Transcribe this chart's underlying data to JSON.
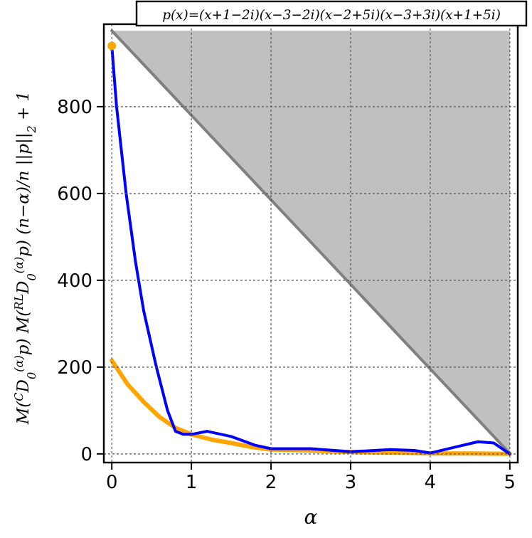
{
  "chart_data": {
    "type": "line",
    "xlabel": "α",
    "ylabel": "M($^{C}$D$_{0}$$^{(α)}$p)    M($^{RL}$D$_{0}$$^{(α)}$p)    (n−α)/n ||p||$_{2}$ + 1",
    "annotations": [
      "p(x)=(x+1−2i)(x−3−2i)(x−2+5i)(x−3+3i)(x+1+5i)"
    ],
    "xlim": [
      -0.1,
      5.1
    ],
    "ylim": [
      -20,
      990
    ],
    "xticks": [
      0,
      1,
      2,
      3,
      4,
      5
    ],
    "yticks": [
      0,
      200,
      400,
      600,
      800
    ],
    "grid": true,
    "line_style": "solid",
    "series": [
      {
        "color": "#808080",
        "x": [
          0,
          5
        ],
        "values": [
          975,
          1
        ],
        "lower": [
          975,
          1
        ],
        "upper": [
          975,
          975
        ]
      },
      {
        "color": "#ffa500",
        "x": [
          0,
          0.2,
          0.4,
          0.6,
          0.8,
          1,
          1.25,
          1.5,
          1.75,
          2,
          2.5,
          3,
          3.5,
          4,
          4.5,
          5
        ],
        "values": [
          215,
          160,
          120,
          85,
          60,
          45,
          33,
          25,
          16,
          10,
          8,
          4,
          3,
          1,
          1,
          0
        ]
      },
      {
        "color": "#0000ff",
        "x": [
          0,
          0.06,
          0.18,
          0.3,
          0.4,
          0.56,
          0.7,
          0.8,
          0.9,
          1,
          1.2,
          1.5,
          1.8,
          2,
          2.5,
          3,
          3.5,
          3.8,
          4,
          4.3,
          4.6,
          4.8,
          5
        ],
        "values": [
          940,
          800,
          600,
          440,
          330,
          200,
          100,
          52,
          45,
          45,
          52,
          40,
          20,
          12,
          12,
          5,
          10,
          8,
          2,
          15,
          28,
          25,
          0
        ]
      },
      {
        "type": "scatter",
        "marker": "circle",
        "color": "#ffa500",
        "x": [
          0
        ],
        "values": [
          940
        ]
      }
    ]
  }
}
